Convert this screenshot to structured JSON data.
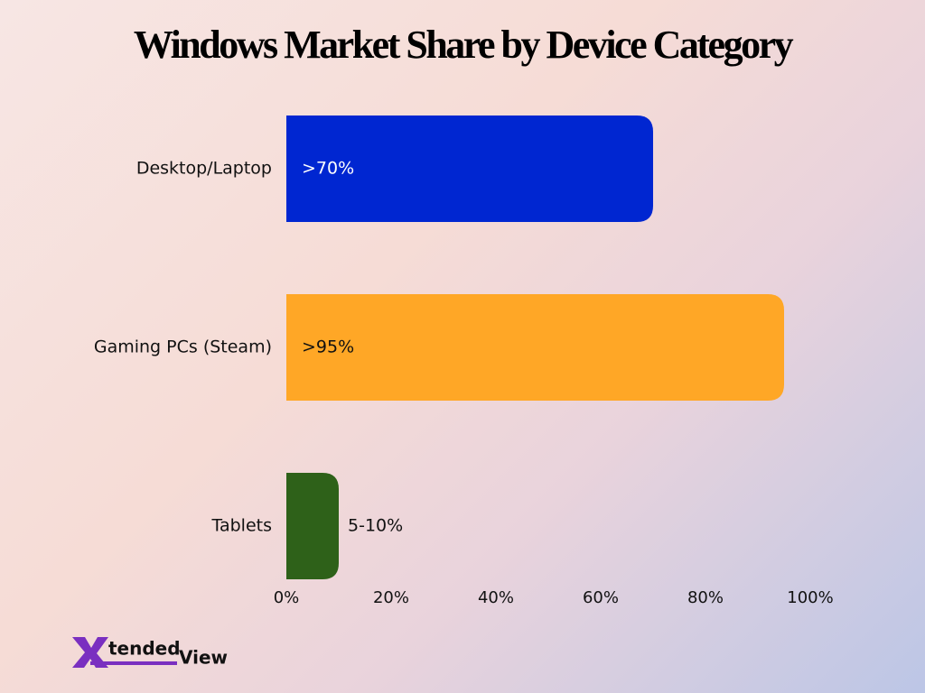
{
  "chart_data": {
    "type": "bar",
    "orientation": "horizontal",
    "title": "Windows Market Share by Device Category",
    "categories": [
      "Desktop/Laptop",
      "Gaming PCs (Steam)",
      "Tablets"
    ],
    "values": [
      70,
      95,
      10
    ],
    "value_labels": [
      ">70%",
      ">95%",
      "5-10%"
    ],
    "colors": [
      "#0026d1",
      "#ffa726",
      "#2e6119"
    ],
    "xlim": [
      0,
      100
    ],
    "xticks": [
      {
        "value": 0,
        "label": "0%"
      },
      {
        "value": 20,
        "label": "20%"
      },
      {
        "value": 40,
        "label": "40%"
      },
      {
        "value": 60,
        "label": "60%"
      },
      {
        "value": 80,
        "label": "80%"
      },
      {
        "value": 100,
        "label": "100%"
      }
    ],
    "grid": false
  },
  "brand": [
    "X",
    "tended",
    "View"
  ]
}
